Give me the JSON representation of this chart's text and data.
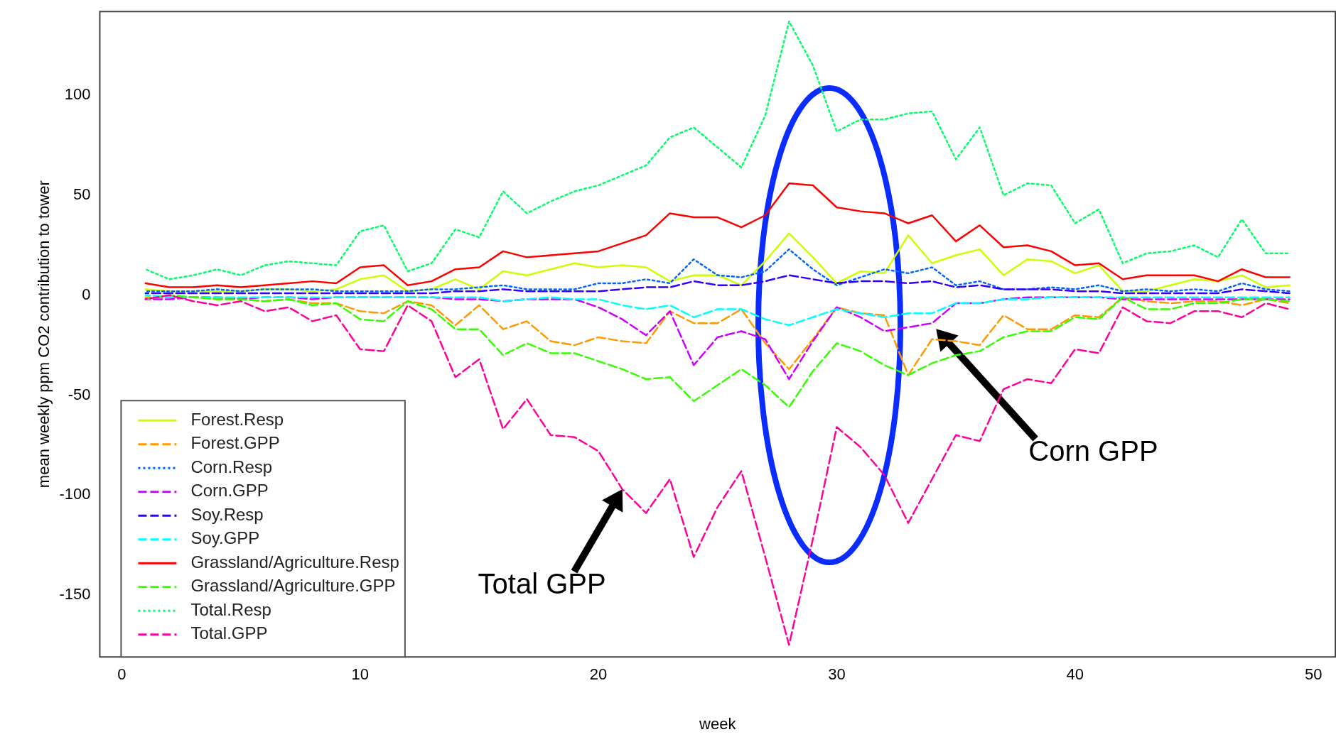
{
  "chart_data": {
    "type": "line",
    "xlabel": "week",
    "ylabel": "mean weekly ppm CO2 contribution to tower",
    "x": [
      1,
      2,
      3,
      4,
      5,
      6,
      7,
      8,
      9,
      10,
      11,
      12,
      13,
      14,
      15,
      16,
      17,
      18,
      19,
      20,
      21,
      22,
      23,
      24,
      25,
      26,
      27,
      28,
      29,
      30,
      31,
      32,
      33,
      34,
      35,
      36,
      37,
      38,
      39,
      40,
      41,
      42,
      43,
      44,
      45,
      46,
      47,
      48,
      49
    ],
    "xlim": [
      -0.92,
      50.92
    ],
    "xticks": [
      0,
      10,
      20,
      30,
      40,
      50
    ],
    "ylim": [
      -181,
      142
    ],
    "yticks": [
      -150,
      -100,
      -50,
      0,
      50,
      100
    ],
    "grid": false,
    "legend": "bottom left",
    "marker": "none",
    "annotations": [
      {
        "text": "Total GPP",
        "x": 21,
        "y": -97
      },
      "Corn GPP"
    ],
    "series": [
      {
        "name": "Forest.Resp",
        "color": "#ccff00",
        "line_style": "solid",
        "values": [
          3,
          2,
          2,
          2,
          2,
          3,
          3,
          2,
          3,
          8,
          10,
          2,
          3,
          8,
          3,
          12,
          10,
          13,
          16,
          14,
          15,
          14,
          7,
          10,
          10,
          5,
          17,
          31,
          19,
          6,
          12,
          11,
          30,
          16,
          20,
          23,
          10,
          18,
          17,
          11,
          15,
          2,
          2,
          5,
          8,
          7,
          10,
          4,
          5
        ]
      },
      {
        "name": "Forest.GPP",
        "color": "#ff9900",
        "line_style": "dashed",
        "values": [
          -1,
          -1,
          -1,
          -2,
          -2,
          -3,
          -2,
          -4,
          -4,
          -8,
          -9,
          -3,
          -5,
          -15,
          -5,
          -17,
          -13,
          -23,
          -25,
          -21,
          -23,
          -24,
          -8,
          -14,
          -14,
          -7,
          -24,
          -37,
          -22,
          -6,
          -9,
          -10,
          -40,
          -22,
          -23,
          -25,
          -10,
          -17,
          -17,
          -10,
          -11,
          -1,
          -3,
          -4,
          -3,
          -3,
          -5,
          -2,
          -4
        ]
      },
      {
        "name": "Corn.Resp",
        "color": "#0066ff",
        "line_style": "dotted",
        "values": [
          2,
          2,
          2,
          3,
          2,
          3,
          3,
          3,
          2,
          2,
          2,
          2,
          3,
          3,
          4,
          5,
          3,
          3,
          3,
          6,
          6,
          8,
          6,
          18,
          10,
          9,
          12,
          23,
          13,
          5,
          9,
          13,
          11,
          14,
          5,
          7,
          3,
          3,
          4,
          3,
          5,
          2,
          3,
          2,
          3,
          2,
          6,
          3,
          2
        ]
      },
      {
        "name": "Corn.GPP",
        "color": "#cc00ff",
        "line_style": "dashed",
        "values": [
          -2,
          -2,
          -1,
          -1,
          -2,
          -1,
          -1,
          -2,
          -1,
          -1,
          -1,
          -1,
          -1,
          -2,
          -2,
          -3,
          -2,
          -2,
          -2,
          -6,
          -12,
          -20,
          -8,
          -35,
          -21,
          -18,
          -22,
          -42,
          -23,
          -6,
          -11,
          -18,
          -16,
          -14,
          -4,
          -4,
          -2,
          -1,
          -1,
          -1,
          -1,
          -2,
          -2,
          -2,
          -2,
          -2,
          -2,
          -2,
          -2
        ]
      },
      {
        "name": "Soy.Resp",
        "color": "#3300ff",
        "line_style": "dashed",
        "values": [
          1,
          1,
          1,
          1,
          1,
          1,
          1,
          1,
          1,
          1,
          1,
          1,
          1,
          2,
          2,
          3,
          2,
          2,
          2,
          2,
          3,
          4,
          4,
          7,
          5,
          5,
          7,
          10,
          8,
          6,
          7,
          7,
          6,
          7,
          4,
          5,
          3,
          3,
          3,
          2,
          2,
          1,
          1,
          1,
          1,
          1,
          3,
          2,
          1
        ]
      },
      {
        "name": "Soy.GPP",
        "color": "#00ffff",
        "line_style": "dashed",
        "values": [
          0,
          -1,
          -1,
          -1,
          -1,
          -1,
          -1,
          -1,
          -1,
          -1,
          -1,
          -1,
          -1,
          -1,
          -1,
          -3,
          -2,
          -1,
          -2,
          -2,
          -5,
          -7,
          -5,
          -11,
          -7,
          -7,
          -12,
          -15,
          -11,
          -7,
          -9,
          -11,
          -9,
          -9,
          -4,
          -4,
          -2,
          -2,
          -1,
          -1,
          -1,
          -1,
          -1,
          -1,
          -1,
          -1,
          -1,
          -1,
          -1
        ]
      },
      {
        "name": "Grassland/Agriculture.Resp",
        "color": "#ff0000",
        "line_style": "solid",
        "values": [
          6,
          4,
          4,
          5,
          4,
          5,
          6,
          7,
          6,
          14,
          15,
          5,
          7,
          13,
          14,
          22,
          19,
          20,
          21,
          22,
          26,
          30,
          41,
          39,
          39,
          34,
          40,
          56,
          55,
          44,
          42,
          41,
          36,
          40,
          27,
          35,
          24,
          25,
          22,
          15,
          16,
          8,
          10,
          10,
          10,
          7,
          13,
          9,
          9
        ]
      },
      {
        "name": "Grassland/Agriculture.GPP",
        "color": "#33ff00",
        "line_style": "dashed",
        "values": [
          -2,
          0,
          -1,
          -2,
          -2,
          -3,
          -2,
          -5,
          -4,
          -12,
          -13,
          -3,
          -7,
          -17,
          -17,
          -30,
          -24,
          -29,
          -29,
          -33,
          -37,
          -42,
          -41,
          -53,
          -45,
          -37,
          -45,
          -56,
          -38,
          -24,
          -28,
          -35,
          -40,
          -34,
          -30,
          -28,
          -21,
          -18,
          -18,
          -11,
          -12,
          -1,
          -7,
          -7,
          -4,
          -4,
          -2,
          -2,
          -3
        ]
      },
      {
        "name": "Total.Resp",
        "color": "#00ff66",
        "line_style": "dotted",
        "values": [
          13,
          8,
          10,
          13,
          10,
          15,
          17,
          16,
          15,
          32,
          35,
          12,
          16,
          33,
          29,
          52,
          41,
          47,
          52,
          55,
          60,
          65,
          79,
          84,
          74,
          64,
          90,
          137,
          115,
          82,
          88,
          88,
          91,
          92,
          68,
          84,
          50,
          56,
          55,
          36,
          43,
          16,
          21,
          22,
          25,
          19,
          38,
          21,
          21
        ]
      },
      {
        "name": "Total.GPP",
        "color": "#ff0099",
        "line_style": "dashed",
        "values": [
          -2,
          0,
          -3,
          -5,
          -3,
          -8,
          -6,
          -13,
          -10,
          -27,
          -28,
          -5,
          -13,
          -41,
          -32,
          -67,
          -52,
          -70,
          -71,
          -78,
          -97,
          -109,
          -92,
          -131,
          -106,
          -88,
          -131,
          -175,
          -122,
          -66,
          -76,
          -90,
          -114,
          -92,
          -70,
          -73,
          -47,
          -42,
          -44,
          -27,
          -29,
          -6,
          -13,
          -14,
          -8,
          -8,
          -11,
          -4,
          -7
        ]
      }
    ]
  }
}
